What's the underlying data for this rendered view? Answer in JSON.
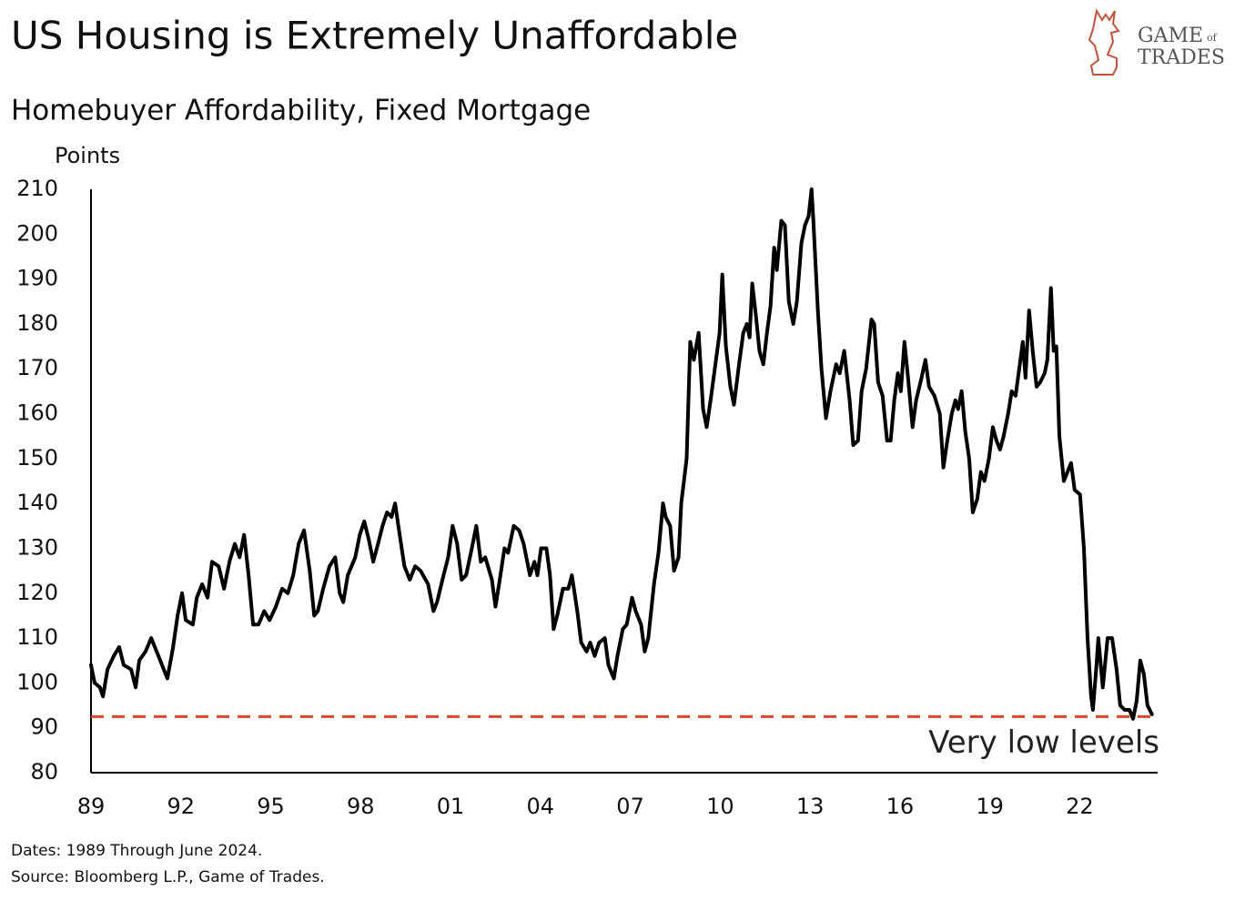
{
  "chart_data": {
    "type": "line",
    "title": "US Housing is Extremely Unaffordable",
    "subtitle": "Homebuyer Affordability, Fixed Mortgage",
    "y_axis_label": "Points",
    "notes": [
      "Dates: 1989 Through June 2024.",
      "Source: Bloomberg L.P., Game of Trades."
    ],
    "logo": [
      "GAME",
      "of",
      "TRADES"
    ],
    "xlim": [
      1989,
      2024.6
    ],
    "xticks": [
      {
        "value": 1989,
        "label": "89"
      },
      {
        "value": 1992,
        "label": "92"
      },
      {
        "value": 1995,
        "label": "95"
      },
      {
        "value": 1998,
        "label": "98"
      },
      {
        "value": 2001,
        "label": "01"
      },
      {
        "value": 2004,
        "label": "04"
      },
      {
        "value": 2007,
        "label": "07"
      },
      {
        "value": 2010,
        "label": "10"
      },
      {
        "value": 2013,
        "label": "13"
      },
      {
        "value": 2016,
        "label": "16"
      },
      {
        "value": 2019,
        "label": "19"
      },
      {
        "value": 2022,
        "label": "22"
      }
    ],
    "ylim": [
      80,
      210
    ],
    "yticks": [
      80,
      90,
      100,
      110,
      120,
      130,
      140,
      150,
      160,
      170,
      180,
      190,
      200,
      210
    ],
    "grid": false,
    "reference_line": {
      "value": 92.5,
      "color": "#d9472b",
      "label": "Very low levels"
    },
    "x": [
      1989.0,
      1989.12,
      1989.3,
      1989.4,
      1989.55,
      1989.76,
      1989.94,
      1990.09,
      1990.34,
      1990.49,
      1990.61,
      1990.82,
      1991.01,
      1991.19,
      1991.43,
      1991.55,
      1991.74,
      1991.89,
      1992.04,
      1992.16,
      1992.4,
      1992.53,
      1992.71,
      1992.89,
      1993.04,
      1993.26,
      1993.44,
      1993.62,
      1993.8,
      1993.96,
      1994.11,
      1994.26,
      1994.41,
      1994.59,
      1994.78,
      1994.96,
      1995.17,
      1995.38,
      1995.57,
      1995.75,
      1995.93,
      1996.11,
      1996.3,
      1996.45,
      1996.57,
      1996.75,
      1996.96,
      1997.15,
      1997.3,
      1997.42,
      1997.57,
      1997.82,
      1997.97,
      1998.12,
      1998.27,
      1998.42,
      1998.58,
      1998.73,
      1998.88,
      1999.03,
      1999.15,
      1999.28,
      1999.46,
      1999.64,
      1999.82,
      2000.0,
      2000.25,
      2000.43,
      2000.55,
      2000.73,
      2000.92,
      2001.07,
      2001.22,
      2001.37,
      2001.52,
      2001.71,
      2001.86,
      2002.01,
      2002.16,
      2002.38,
      2002.5,
      2002.62,
      2002.8,
      2002.92,
      2003.11,
      2003.29,
      2003.44,
      2003.65,
      2003.8,
      2003.9,
      2004.02,
      2004.2,
      2004.32,
      2004.44,
      2004.56,
      2004.75,
      2004.93,
      2005.05,
      2005.23,
      2005.36,
      2005.54,
      2005.66,
      2005.81,
      2005.96,
      2006.15,
      2006.27,
      2006.45,
      2006.57,
      2006.75,
      2006.88,
      2007.06,
      2007.18,
      2007.36,
      2007.48,
      2007.6,
      2007.79,
      2007.94,
      2008.09,
      2008.18,
      2008.33,
      2008.46,
      2008.61,
      2008.7,
      2008.88,
      2009.0,
      2009.12,
      2009.28,
      2009.43,
      2009.55,
      2009.7,
      2009.82,
      2009.98,
      2010.07,
      2010.19,
      2010.34,
      2010.46,
      2010.61,
      2010.77,
      2010.89,
      2010.98,
      2011.07,
      2011.19,
      2011.31,
      2011.44,
      2011.56,
      2011.68,
      2011.8,
      2011.89,
      2012.04,
      2012.16,
      2012.29,
      2012.44,
      2012.56,
      2012.71,
      2012.83,
      2012.95,
      2013.05,
      2013.11,
      2013.26,
      2013.38,
      2013.53,
      2013.68,
      2013.87,
      2013.99,
      2014.14,
      2014.32,
      2014.44,
      2014.6,
      2014.72,
      2014.87,
      2015.05,
      2015.14,
      2015.27,
      2015.42,
      2015.57,
      2015.69,
      2015.81,
      2015.93,
      2016.03,
      2016.15,
      2016.27,
      2016.42,
      2016.54,
      2016.72,
      2016.85,
      2016.97,
      2017.15,
      2017.33,
      2017.45,
      2017.58,
      2017.73,
      2017.85,
      2017.94,
      2018.06,
      2018.18,
      2018.31,
      2018.43,
      2018.58,
      2018.7,
      2018.82,
      2018.97,
      2019.1,
      2019.22,
      2019.34,
      2019.46,
      2019.61,
      2019.73,
      2019.86,
      2019.98,
      2020.1,
      2020.19,
      2020.31,
      2020.43,
      2020.56,
      2020.68,
      2020.83,
      2020.92,
      2021.04,
      2021.13,
      2021.22,
      2021.32,
      2021.47,
      2021.59,
      2021.71,
      2021.83,
      2022.01,
      2022.14,
      2022.26,
      2022.38,
      2022.44,
      2022.56,
      2022.62,
      2022.77,
      2022.93,
      2023.08,
      2023.23,
      2023.35,
      2023.5,
      2023.66,
      2023.78,
      2023.9,
      2024.02,
      2024.14,
      2024.26,
      2024.41
    ],
    "series": [
      {
        "name": "Homebuyer Affordability, Fixed Mortgage",
        "color": "#000000",
        "values": [
          104,
          100,
          99,
          97,
          103,
          106,
          108,
          104,
          103,
          99,
          105,
          107,
          110,
          107,
          103,
          101,
          108,
          115,
          120,
          114,
          113,
          119,
          122,
          119,
          127,
          126,
          121,
          127,
          131,
          128,
          133,
          124,
          113,
          113,
          116,
          114,
          117,
          121,
          120,
          124,
          131,
          134,
          125,
          115,
          116,
          121,
          126,
          128,
          120,
          118,
          124,
          128,
          133,
          136,
          132,
          127,
          131,
          135,
          138,
          137,
          140,
          134,
          126,
          123,
          126,
          125,
          122,
          116,
          118,
          123,
          128,
          135,
          131,
          123,
          124,
          130,
          135,
          127,
          128,
          123,
          117,
          122,
          130,
          129,
          135,
          134,
          131,
          124,
          127,
          124,
          130,
          130,
          124,
          112,
          115,
          121,
          121,
          124,
          116,
          109,
          107,
          109,
          106,
          109,
          110,
          104,
          101,
          106,
          112,
          113,
          119,
          116,
          113,
          107,
          110,
          122,
          129,
          140,
          137,
          135,
          125,
          128,
          140,
          150,
          176,
          172,
          178,
          161,
          157,
          164,
          170,
          178,
          191,
          175,
          166,
          162,
          170,
          178,
          180,
          177,
          189,
          182,
          174,
          171,
          178,
          184,
          197,
          192,
          203,
          202,
          185,
          180,
          185,
          198,
          202,
          204,
          210,
          203,
          183,
          170,
          159,
          165,
          171,
          169,
          174,
          163,
          153,
          154,
          165,
          170,
          181,
          180,
          167,
          164,
          154,
          154,
          163,
          169,
          165,
          176,
          168,
          157,
          163,
          168,
          172,
          166,
          164,
          160,
          148,
          154,
          160,
          163,
          161,
          165,
          156,
          150,
          138,
          141,
          147,
          145,
          150,
          157,
          154,
          152,
          155,
          160,
          165,
          164,
          170,
          176,
          168,
          183,
          174,
          166,
          167,
          169,
          172,
          188,
          174,
          175,
          155,
          145,
          147,
          149,
          143,
          142,
          130,
          110,
          97,
          94,
          104,
          110,
          99,
          110,
          110,
          103,
          95,
          94,
          94,
          92,
          96,
          105,
          102,
          95,
          93
        ]
      }
    ]
  }
}
